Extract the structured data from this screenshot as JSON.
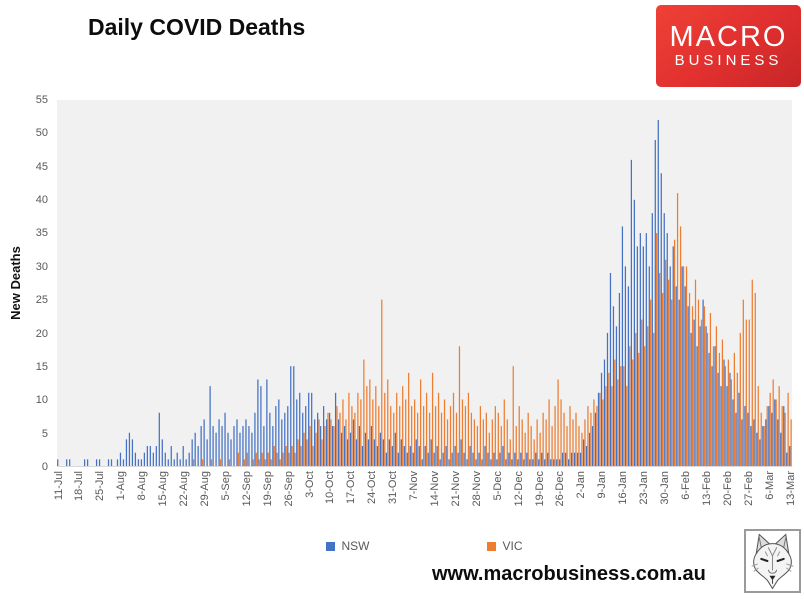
{
  "header": {
    "title": "Daily COVID Deaths"
  },
  "logo": {
    "line1": "MACRO",
    "line2": "BUSINESS",
    "bg_color": "#d92b27",
    "text_color": "#ffffff"
  },
  "footer": {
    "url": "www.macrobusiness.com.au"
  },
  "icons": {
    "wolf_logo": "wolf-sketch-icon"
  },
  "chart_data": {
    "type": "bar",
    "title": "Daily COVID Deaths",
    "xlabel": "",
    "ylabel": "New Deaths",
    "ylim": [
      0,
      55
    ],
    "y_ticks": [
      0,
      5,
      10,
      15,
      20,
      25,
      30,
      35,
      40,
      45,
      50,
      55
    ],
    "grid": false,
    "plot_bg": "#f1f1f1",
    "legend_position": "bottom",
    "x_is_daily": true,
    "n_days": 246,
    "x_range": "11-Jul to 13-Mar, daily, weekly tick labels",
    "x_tick_labels": [
      "11-Jul",
      "18-Jul",
      "25-Jul",
      "1-Aug",
      "8-Aug",
      "15-Aug",
      "22-Aug",
      "29-Aug",
      "5-Sep",
      "12-Sep",
      "19-Sep",
      "26-Sep",
      "3-Oct",
      "10-Oct",
      "17-Oct",
      "24-Oct",
      "31-Oct",
      "7-Nov",
      "14-Nov",
      "21-Nov",
      "28-Nov",
      "5-Dec",
      "12-Dec",
      "19-Dec",
      "26-Dec",
      "2-Jan",
      "9-Jan",
      "16-Jan",
      "23-Jan",
      "30-Jan",
      "6-Feb",
      "13-Feb",
      "20-Feb",
      "27-Feb",
      "6-Mar",
      "13-Mar"
    ],
    "x_tick_every_n_days": 7,
    "series": [
      {
        "name": "NSW",
        "color": "#4472c4",
        "values": [
          1,
          0,
          0,
          1,
          1,
          0,
          0,
          0,
          0,
          1,
          1,
          0,
          0,
          1,
          1,
          0,
          0,
          1,
          1,
          0,
          1,
          2,
          1,
          4,
          5,
          4,
          2,
          1,
          1,
          2,
          3,
          3,
          2,
          3,
          8,
          4,
          2,
          1,
          3,
          1,
          2,
          1,
          3,
          1,
          2,
          4,
          5,
          3,
          6,
          7,
          4,
          12,
          6,
          5,
          7,
          6,
          8,
          5,
          4,
          6,
          7,
          5,
          6,
          7,
          6,
          5,
          8,
          13,
          12,
          6,
          13,
          8,
          6,
          9,
          10,
          7,
          8,
          9,
          15,
          15,
          10,
          11,
          8,
          9,
          11,
          11,
          7,
          8,
          6,
          9,
          7,
          8,
          6,
          11,
          7,
          5,
          6,
          4,
          5,
          7,
          4,
          6,
          3,
          5,
          4,
          6,
          4,
          3,
          5,
          4,
          2,
          4,
          3,
          5,
          2,
          4,
          3,
          2,
          3,
          2,
          4,
          3,
          1,
          3,
          2,
          4,
          2,
          3,
          1,
          2,
          3,
          1,
          2,
          3,
          2,
          4,
          2,
          1,
          3,
          2,
          1,
          2,
          1,
          3,
          2,
          1,
          2,
          1,
          2,
          3,
          1,
          2,
          1,
          2,
          1,
          2,
          1,
          2,
          1,
          1,
          2,
          1,
          2,
          1,
          2,
          1,
          1,
          1,
          1,
          2,
          2,
          1,
          2,
          2,
          2,
          2,
          4,
          3,
          5,
          6,
          8,
          11,
          14,
          16,
          20,
          29,
          24,
          21,
          26,
          36,
          30,
          27,
          46,
          40,
          33,
          35,
          33,
          35,
          30,
          38,
          49,
          52,
          44,
          38,
          35,
          30,
          33,
          27,
          25,
          30,
          27,
          24,
          20,
          22,
          18,
          21,
          25,
          21,
          17,
          15,
          18,
          14,
          12,
          16,
          12,
          14,
          10,
          8,
          11,
          7,
          9,
          8,
          6,
          7,
          5,
          4,
          6,
          7,
          9,
          8,
          10,
          7,
          5,
          9,
          2,
          3
        ]
      },
      {
        "name": "VIC",
        "color": "#ed7d31",
        "values": [
          0,
          0,
          0,
          0,
          0,
          0,
          0,
          0,
          0,
          0,
          0,
          0,
          0,
          0,
          0,
          0,
          0,
          0,
          0,
          0,
          0,
          0,
          0,
          0,
          0,
          0,
          0,
          0,
          0,
          0,
          0,
          0,
          0,
          0,
          0,
          0,
          0,
          0,
          0,
          0,
          0,
          0,
          0,
          0,
          0,
          1,
          0,
          0,
          1,
          0,
          0,
          1,
          0,
          0,
          1,
          0,
          0,
          1,
          0,
          0,
          2,
          0,
          1,
          2,
          0,
          1,
          2,
          1,
          2,
          1,
          2,
          1,
          3,
          2,
          1,
          2,
          3,
          2,
          3,
          2,
          4,
          3,
          5,
          4,
          6,
          3,
          5,
          7,
          4,
          6,
          8,
          7,
          6,
          9,
          8,
          10,
          7,
          11,
          9,
          8,
          11,
          10,
          16,
          12,
          13,
          10,
          12,
          9,
          25,
          11,
          13,
          9,
          8,
          11,
          9,
          12,
          10,
          14,
          9,
          10,
          8,
          13,
          9,
          11,
          8,
          14,
          9,
          11,
          8,
          10,
          7,
          9,
          11,
          8,
          18,
          10,
          9,
          11,
          8,
          7,
          6,
          9,
          7,
          8,
          5,
          7,
          9,
          8,
          6,
          10,
          7,
          4,
          15,
          6,
          9,
          7,
          5,
          8,
          6,
          4,
          7,
          5,
          8,
          7,
          10,
          6,
          9,
          13,
          10,
          8,
          6,
          9,
          7,
          8,
          6,
          5,
          7,
          9,
          8,
          10,
          9,
          11,
          10,
          12,
          14,
          12,
          16,
          13,
          15,
          15,
          12,
          18,
          16,
          20,
          17,
          22,
          18,
          21,
          25,
          20,
          35,
          29,
          26,
          31,
          28,
          25,
          34,
          41,
          36,
          30,
          30,
          26,
          24,
          28,
          25,
          22,
          24,
          20,
          23,
          18,
          21,
          17,
          19,
          15,
          16,
          13,
          17,
          14,
          20,
          25,
          22,
          22,
          28,
          26,
          12,
          8,
          6,
          9,
          11,
          13,
          10,
          12,
          9,
          8,
          11,
          7
        ]
      }
    ]
  }
}
